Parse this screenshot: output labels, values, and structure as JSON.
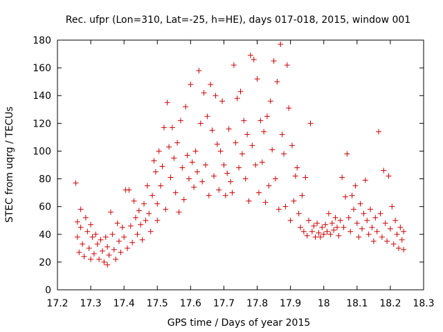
{
  "chart_data": {
    "type": "scatter",
    "title": "Rec. ufpr (Lon=310, Lat=-25, h=HE), days 017-018, 2015, window 001",
    "xlabel": "GPS time / Days of year 2015",
    "ylabel": "STEC from uqrg / TECUs",
    "xlim": [
      17.2,
      18.3
    ],
    "ylim": [
      0,
      180
    ],
    "xticks": [
      "17.2",
      "17.3",
      "17.4",
      "17.5",
      "17.6",
      "17.7",
      "17.8",
      "17.9",
      "18",
      "18.1",
      "18.2",
      "18.3"
    ],
    "yticks": [
      "0",
      "20",
      "40",
      "60",
      "80",
      "100",
      "120",
      "140",
      "160",
      "180"
    ],
    "grid": false,
    "legend": "none",
    "marker": "plus",
    "color": "#cc0000",
    "points": [
      [
        17.255,
        77
      ],
      [
        17.26,
        49
      ],
      [
        17.26,
        38
      ],
      [
        17.265,
        27
      ],
      [
        17.27,
        58
      ],
      [
        17.27,
        45
      ],
      [
        17.275,
        33
      ],
      [
        17.28,
        24
      ],
      [
        17.285,
        52
      ],
      [
        17.29,
        42
      ],
      [
        17.295,
        30
      ],
      [
        17.3,
        22
      ],
      [
        17.3,
        47
      ],
      [
        17.305,
        38
      ],
      [
        17.31,
        26
      ],
      [
        17.315,
        40
      ],
      [
        17.32,
        33
      ],
      [
        17.325,
        22
      ],
      [
        17.33,
        36
      ],
      [
        17.335,
        28
      ],
      [
        17.34,
        20
      ],
      [
        17.345,
        38
      ],
      [
        17.35,
        31
      ],
      [
        17.35,
        18
      ],
      [
        17.355,
        25
      ],
      [
        17.36,
        56
      ],
      [
        17.365,
        40
      ],
      [
        17.37,
        29
      ],
      [
        17.375,
        22
      ],
      [
        17.38,
        48
      ],
      [
        17.385,
        35
      ],
      [
        17.39,
        27
      ],
      [
        17.395,
        45
      ],
      [
        17.4,
        38
      ],
      [
        17.405,
        72
      ],
      [
        17.41,
        30
      ],
      [
        17.415,
        72
      ],
      [
        17.42,
        46
      ],
      [
        17.425,
        34
      ],
      [
        17.43,
        64
      ],
      [
        17.435,
        52
      ],
      [
        17.44,
        40
      ],
      [
        17.445,
        57
      ],
      [
        17.45,
        47
      ],
      [
        17.455,
        36
      ],
      [
        17.46,
        62
      ],
      [
        17.465,
        50
      ],
      [
        17.47,
        75
      ],
      [
        17.475,
        55
      ],
      [
        17.48,
        42
      ],
      [
        17.485,
        68
      ],
      [
        17.49,
        93
      ],
      [
        17.495,
        85
      ],
      [
        17.5,
        62
      ],
      [
        17.5,
        50
      ],
      [
        17.505,
        100
      ],
      [
        17.51,
        75
      ],
      [
        17.515,
        89
      ],
      [
        17.52,
        117
      ],
      [
        17.525,
        58
      ],
      [
        17.53,
        135
      ],
      [
        17.535,
        103
      ],
      [
        17.54,
        81
      ],
      [
        17.545,
        117
      ],
      [
        17.55,
        95
      ],
      [
        17.555,
        70
      ],
      [
        17.56,
        106
      ],
      [
        17.565,
        56
      ],
      [
        17.57,
        122
      ],
      [
        17.575,
        88
      ],
      [
        17.58,
        65
      ],
      [
        17.585,
        132
      ],
      [
        17.59,
        97
      ],
      [
        17.595,
        80
      ],
      [
        17.6,
        148
      ],
      [
        17.605,
        92
      ],
      [
        17.61,
        74
      ],
      [
        17.615,
        100
      ],
      [
        17.62,
        85
      ],
      [
        17.625,
        158
      ],
      [
        17.63,
        120
      ],
      [
        17.635,
        78
      ],
      [
        17.64,
        142
      ],
      [
        17.645,
        90
      ],
      [
        17.65,
        125
      ],
      [
        17.655,
        68
      ],
      [
        17.66,
        148
      ],
      [
        17.665,
        115
      ],
      [
        17.67,
        82
      ],
      [
        17.675,
        140
      ],
      [
        17.68,
        105
      ],
      [
        17.685,
        72
      ],
      [
        17.69,
        100
      ],
      [
        17.695,
        136
      ],
      [
        17.7,
        90
      ],
      [
        17.705,
        68
      ],
      [
        17.71,
        84
      ],
      [
        17.715,
        116
      ],
      [
        17.72,
        78
      ],
      [
        17.725,
        70
      ],
      [
        17.73,
        162
      ],
      [
        17.735,
        106
      ],
      [
        17.74,
        138
      ],
      [
        17.745,
        88
      ],
      [
        17.75,
        143
      ],
      [
        17.755,
        98
      ],
      [
        17.76,
        122
      ],
      [
        17.765,
        80
      ],
      [
        17.77,
        112
      ],
      [
        17.775,
        64
      ],
      [
        17.78,
        169
      ],
      [
        17.785,
        104
      ],
      [
        17.79,
        166
      ],
      [
        17.795,
        90
      ],
      [
        17.8,
        152
      ],
      [
        17.805,
        70
      ],
      [
        17.81,
        122
      ],
      [
        17.815,
        92
      ],
      [
        17.82,
        114
      ],
      [
        17.825,
        63
      ],
      [
        17.83,
        125
      ],
      [
        17.835,
        75
      ],
      [
        17.84,
        136
      ],
      [
        17.845,
        101
      ],
      [
        17.85,
        165
      ],
      [
        17.855,
        80
      ],
      [
        17.86,
        150
      ],
      [
        17.865,
        58
      ],
      [
        17.87,
        177
      ],
      [
        17.875,
        112
      ],
      [
        17.88,
        98
      ],
      [
        17.885,
        60
      ],
      [
        17.89,
        162
      ],
      [
        17.895,
        131
      ],
      [
        17.9,
        50
      ],
      [
        17.905,
        104
      ],
      [
        17.91,
        64
      ],
      [
        17.915,
        82
      ],
      [
        17.92,
        88
      ],
      [
        17.925,
        55
      ],
      [
        17.93,
        45
      ],
      [
        17.935,
        68
      ],
      [
        17.94,
        42
      ],
      [
        17.945,
        81
      ],
      [
        17.95,
        39
      ],
      [
        17.955,
        50
      ],
      [
        17.96,
        120
      ],
      [
        17.965,
        42
      ],
      [
        17.97,
        46
      ],
      [
        17.975,
        38
      ],
      [
        17.98,
        48
      ],
      [
        17.985,
        41
      ],
      [
        17.99,
        38
      ],
      [
        17.995,
        45
      ],
      [
        18.0,
        40
      ],
      [
        18.005,
        47
      ],
      [
        18.01,
        42
      ],
      [
        18.015,
        55
      ],
      [
        18.02,
        40
      ],
      [
        18.025,
        48
      ],
      [
        18.03,
        43
      ],
      [
        18.035,
        52
      ],
      [
        18.04,
        45
      ],
      [
        18.045,
        39
      ],
      [
        18.05,
        50
      ],
      [
        18.055,
        81
      ],
      [
        18.06,
        45
      ],
      [
        18.065,
        67
      ],
      [
        18.07,
        98
      ],
      [
        18.075,
        52
      ],
      [
        18.08,
        42
      ],
      [
        18.085,
        68
      ],
      [
        18.09,
        58
      ],
      [
        18.095,
        75
      ],
      [
        18.1,
        48
      ],
      [
        18.105,
        38
      ],
      [
        18.11,
        62
      ],
      [
        18.115,
        44
      ],
      [
        18.12,
        55
      ],
      [
        18.125,
        79
      ],
      [
        18.13,
        50
      ],
      [
        18.135,
        40
      ],
      [
        18.14,
        58
      ],
      [
        18.145,
        45
      ],
      [
        18.15,
        35
      ],
      [
        18.155,
        52
      ],
      [
        18.16,
        42
      ],
      [
        18.165,
        114
      ],
      [
        18.17,
        55
      ],
      [
        18.175,
        38
      ],
      [
        18.18,
        86
      ],
      [
        18.185,
        48
      ],
      [
        18.19,
        35
      ],
      [
        18.195,
        82
      ],
      [
        18.2,
        44
      ],
      [
        18.205,
        60
      ],
      [
        18.21,
        33
      ],
      [
        18.215,
        50
      ],
      [
        18.22,
        40
      ],
      [
        18.225,
        30
      ],
      [
        18.23,
        45
      ],
      [
        18.235,
        36
      ],
      [
        18.24,
        42
      ],
      [
        18.24,
        29
      ]
    ]
  }
}
